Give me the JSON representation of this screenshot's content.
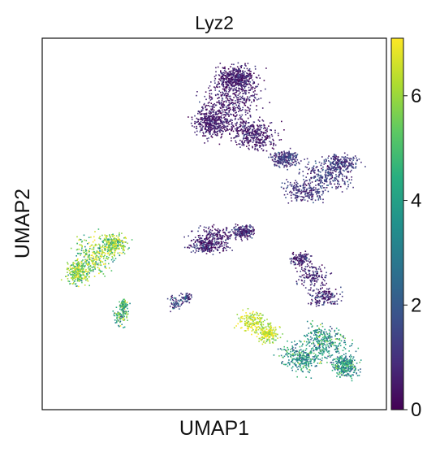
{
  "chart_data": {
    "type": "scatter",
    "title": "Lyz2",
    "xlabel": "UMAP1",
    "ylabel": "UMAP2",
    "xticks": [],
    "yticks": [],
    "colorbar": {
      "colormap": "viridis",
      "range": [
        0,
        7.1
      ],
      "ticks": [
        0,
        2,
        4,
        6
      ],
      "tick_labels": [
        "0",
        "2",
        "4",
        "6"
      ]
    },
    "colors": {
      "low": "#440154",
      "mid": "#21918c",
      "high": "#fde725"
    },
    "clusters": [
      {
        "id": "upper-large",
        "expression": 0.6
      },
      {
        "id": "upper-right-lobe",
        "expression": 1.2
      },
      {
        "id": "middle-band",
        "expression": 0.8
      },
      {
        "id": "left-large",
        "expression": 5.8
      },
      {
        "id": "left-small-lower",
        "expression": 4.6
      },
      {
        "id": "small-central",
        "expression": 1.4
      },
      {
        "id": "lower-right-top",
        "expression": 0.8
      },
      {
        "id": "lower-right-high",
        "expression": 6.5
      },
      {
        "id": "lower-right-mixed",
        "expression": 3.8
      }
    ]
  }
}
